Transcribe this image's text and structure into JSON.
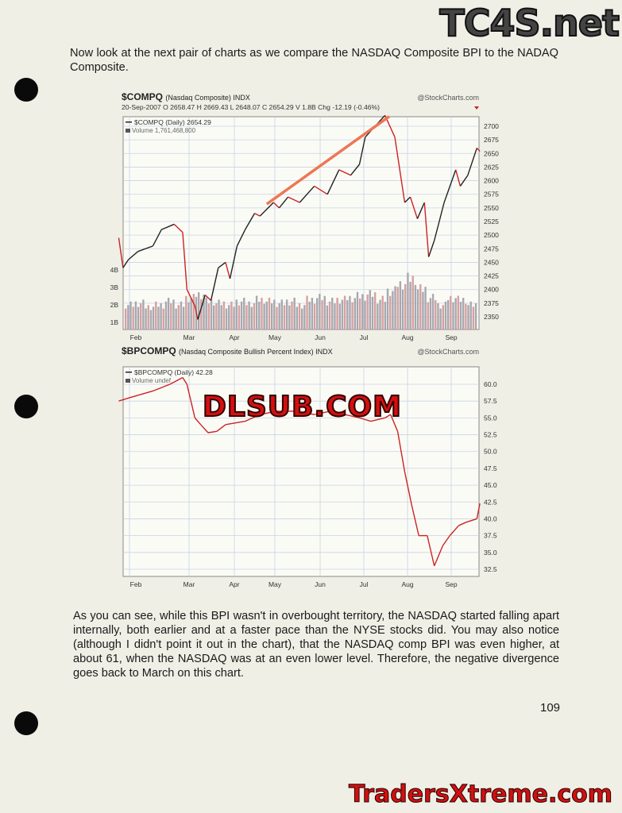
{
  "intro": "Now look at the next pair of charts as we compare the NASDAQ Composite BPI to the NADAQ Composite.",
  "body_text": "As you can see, while this BPI wasn't in overbought territory, the NASDAQ started falling apart internally, both earlier and at a faster pace than the NYSE stocks did. You may also notice (although I didn't point it out in the chart), that the NASDAQ comp BPI was even higher, at about 61, when the NASDAQ was at an even lower level. Therefore, the negative divergence goes back to March on this chart.",
  "page_number": "109",
  "watermarks": {
    "top": "TC4S.net",
    "middle": "DLSUB.COM",
    "bottom": "TradersXtreme.com"
  },
  "colors": {
    "price_up": "#222222",
    "price_down": "#cc2222",
    "trendline": "#ee7755",
    "volume": "#a8a8b0",
    "grid": "#c8d4e4"
  },
  "chart_data": [
    {
      "type": "line",
      "symbol": "$COMPQ",
      "name_text": "(Nasdaq Composite)",
      "exchange": "INDX",
      "source": "@StockCharts.com",
      "date": "20-Sep-2007",
      "ohlc": {
        "o_label": "O",
        "o": "2658.47",
        "h_label": "H",
        "h": "2669.43",
        "l_label": "L",
        "l": "2648.07",
        "c_label": "C",
        "c": "2654.29",
        "v_label": "V",
        "v": "1.8B",
        "chg_label": "Chg",
        "chg": "-12.19 (-0.46%)"
      },
      "legend_price": "$COMPQ (Daily) 2654.29",
      "legend_volume": "Volume 1,761,468,800",
      "x_ticks": [
        "Feb",
        "Mar",
        "Apr",
        "May",
        "Jun",
        "Jul",
        "Aug",
        "Sep"
      ],
      "y_ticks": [
        2350,
        2375,
        2400,
        2425,
        2450,
        2475,
        2500,
        2525,
        2550,
        2575,
        2600,
        2625,
        2650,
        2675,
        2700
      ],
      "volume_ticks": [
        "1B",
        "2B",
        "3B",
        "4B"
      ],
      "ylim": [
        2335,
        2725
      ],
      "series": [
        {
          "values": [
            [
              "2007-01-22",
              2495
            ],
            [
              "2007-01-26",
              2440
            ],
            [
              "2007-01-31",
              2455
            ],
            [
              "2007-02-05",
              2470
            ],
            [
              "2007-02-12",
              2480
            ],
            [
              "2007-02-16",
              2510
            ],
            [
              "2007-02-22",
              2520
            ],
            [
              "2007-02-26",
              2505
            ],
            [
              "2007-02-28",
              2400
            ],
            [
              "2007-03-05",
              2370
            ],
            [
              "2007-03-07",
              2345
            ],
            [
              "2007-03-12",
              2390
            ],
            [
              "2007-03-16",
              2380
            ],
            [
              "2007-03-21",
              2440
            ],
            [
              "2007-03-26",
              2450
            ],
            [
              "2007-03-29",
              2420
            ],
            [
              "2007-04-03",
              2480
            ],
            [
              "2007-04-09",
              2510
            ],
            [
              "2007-04-16",
              2540
            ],
            [
              "2007-04-20",
              2535
            ],
            [
              "2007-04-30",
              2560
            ],
            [
              "2007-05-04",
              2550
            ],
            [
              "2007-05-10",
              2570
            ],
            [
              "2007-05-18",
              2560
            ],
            [
              "2007-05-28",
              2590
            ],
            [
              "2007-06-06",
              2575
            ],
            [
              "2007-06-14",
              2620
            ],
            [
              "2007-06-22",
              2610
            ],
            [
              "2007-06-28",
              2630
            ],
            [
              "2007-07-02",
              2680
            ],
            [
              "2007-07-09",
              2700
            ],
            [
              "2007-07-16",
              2720
            ],
            [
              "2007-07-23",
              2680
            ],
            [
              "2007-07-30",
              2560
            ],
            [
              "2007-08-03",
              2570
            ],
            [
              "2007-08-08",
              2530
            ],
            [
              "2007-08-13",
              2560
            ],
            [
              "2007-08-16",
              2460
            ],
            [
              "2007-08-20",
              2490
            ],
            [
              "2007-08-27",
              2560
            ],
            [
              "2007-09-04",
              2620
            ],
            [
              "2007-09-07",
              2590
            ],
            [
              "2007-09-12",
              2610
            ],
            [
              "2007-09-18",
              2660
            ],
            [
              "2007-09-20",
              2654
            ]
          ]
        }
      ],
      "volume_weekly_billions": [
        2.0,
        2.1,
        1.9,
        2.0,
        2.2,
        2.0,
        2.4,
        2.6,
        2.2,
        2.1,
        2.0,
        2.2,
        2.1,
        2.3,
        2.2,
        2.1,
        2.2,
        2.0,
        2.3,
        2.4,
        2.2,
        2.3,
        2.4,
        2.5,
        2.6,
        2.3,
        2.8,
        3.2,
        3.5,
        2.9,
        2.4,
        2.0,
        2.4,
        2.3,
        2.0
      ],
      "annotation": "trendline from May to late July highs"
    },
    {
      "type": "line",
      "symbol": "$BPCOMPQ",
      "name_text": "(Nasdaq Composite Bullish Percent Index)",
      "exchange": "INDX",
      "source": "@StockCharts.com",
      "legend_price": "$BPCOMPQ (Daily) 42.28",
      "legend_volume": "Volume undef",
      "x_ticks": [
        "Feb",
        "Mar",
        "Apr",
        "May",
        "Jun",
        "Jul",
        "Aug",
        "Sep"
      ],
      "y_ticks": [
        "32.5",
        "35.0",
        "37.5",
        "40.0",
        "42.5",
        "45.0",
        "47.5",
        "50.0",
        "52.5",
        "55.0",
        "57.5",
        "60.0"
      ],
      "ylim": [
        31.5,
        62.5
      ],
      "series": [
        {
          "values": [
            [
              "2007-01-22",
              57.5
            ],
            [
              "2007-02-01",
              58
            ],
            [
              "2007-02-12",
              59
            ],
            [
              "2007-02-20",
              60
            ],
            [
              "2007-02-26",
              61
            ],
            [
              "2007-02-28",
              60
            ],
            [
              "2007-03-05",
              55
            ],
            [
              "2007-03-09",
              54
            ],
            [
              "2007-03-14",
              52.8
            ],
            [
              "2007-03-20",
              53
            ],
            [
              "2007-03-26",
              54
            ],
            [
              "2007-04-09",
              54.5
            ],
            [
              "2007-04-20",
              55.5
            ],
            [
              "2007-05-02",
              56
            ],
            [
              "2007-05-16",
              56
            ],
            [
              "2007-05-28",
              55.5
            ],
            [
              "2007-06-08",
              56
            ],
            [
              "2007-06-18",
              55.5
            ],
            [
              "2007-06-28",
              55
            ],
            [
              "2007-07-06",
              54.5
            ],
            [
              "2007-07-16",
              55
            ],
            [
              "2007-07-20",
              55.5
            ],
            [
              "2007-07-25",
              53
            ],
            [
              "2007-07-30",
              47
            ],
            [
              "2007-08-04",
              42
            ],
            [
              "2007-08-09",
              37.5
            ],
            [
              "2007-08-15",
              37.5
            ],
            [
              "2007-08-20",
              33
            ],
            [
              "2007-08-26",
              36
            ],
            [
              "2007-08-31",
              37.5
            ],
            [
              "2007-09-06",
              39
            ],
            [
              "2007-09-11",
              39.5
            ],
            [
              "2007-09-18",
              40
            ],
            [
              "2007-09-20",
              42.28
            ]
          ]
        }
      ]
    }
  ]
}
